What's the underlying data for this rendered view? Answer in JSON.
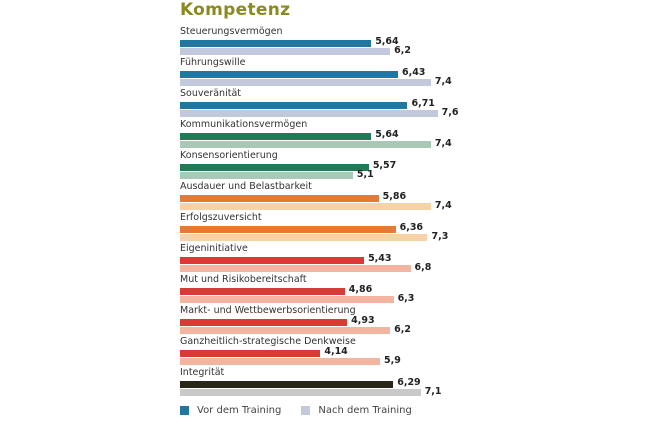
{
  "chart_data": {
    "type": "bar",
    "orientation": "horizontal",
    "title": "Kompetenz",
    "xlabel": "",
    "ylabel": "",
    "xlim": [
      0,
      8
    ],
    "grid": false,
    "legend_position": "bottom",
    "categories": [
      "Steuerungsvermögen",
      "Führungswille",
      "Souveränität",
      "Kommunikationsvermögen",
      "Konsensorientierung",
      "Ausdauer und Belastbarkeit",
      "Erfolgszuversicht",
      "Eigeninitiative",
      "Mut und Risikobereitschaft",
      "Markt- und Wettbewerbsorientierung",
      "Ganzheitlich-strategische Denkweise",
      "Integrität"
    ],
    "series": [
      {
        "name": "Vor dem Training",
        "values": [
          5.64,
          6.43,
          6.71,
          5.64,
          5.57,
          5.86,
          6.36,
          5.43,
          4.86,
          4.93,
          4.14,
          6.29
        ]
      },
      {
        "name": "Nach dem Training",
        "values": [
          6.2,
          7.4,
          7.6,
          7.4,
          5.1,
          7.4,
          7.3,
          6.8,
          6.3,
          6.2,
          5.9,
          7.1
        ]
      }
    ],
    "value_labels_before": [
      "5,64",
      "6,43",
      "6,71",
      "5,64",
      "5,57",
      "5,86",
      "6,36",
      "5,43",
      "4,86",
      "4,93",
      "4,14",
      "6,29"
    ],
    "value_labels_after": [
      "6,2",
      "7,4",
      "7,6",
      "7,4",
      "5,1",
      "7,4",
      "7,3",
      "6,8",
      "6,3",
      "6,2",
      "5,9",
      "7,1"
    ],
    "colors_before": [
      "#2277a0",
      "#2277a0",
      "#2277a0",
      "#1f7a55",
      "#1f7a55",
      "#e8792f",
      "#e8792f",
      "#d93a35",
      "#d93a35",
      "#d93a35",
      "#d93a35",
      "#2a2618"
    ],
    "colors_after": [
      "#c2c9dc",
      "#c2c9dc",
      "#c2c9dc",
      "#a9c9b6",
      "#a9c9b6",
      "#f6d2a6",
      "#f6d2a6",
      "#f4b5a0",
      "#f4b5a0",
      "#f4b5a0",
      "#f4b5a0",
      "#c9c9c9"
    ]
  },
  "legend": {
    "items": [
      {
        "label": "Vor dem Training",
        "color": "#2277a0"
      },
      {
        "label": "Nach dem Training",
        "color": "#c2c9dc"
      }
    ]
  }
}
